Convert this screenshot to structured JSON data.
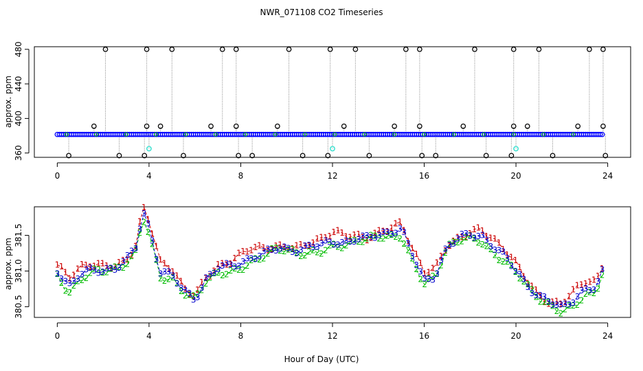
{
  "title": "NWR_071108  CO2 Timeseries",
  "shared_xlabel": "Hour of Day (UTC)",
  "chart_data": [
    {
      "type": "scatter",
      "panel": "top",
      "title": "",
      "xlabel": "",
      "ylabel": "approx. ppm",
      "xlim": [
        -1,
        25
      ],
      "ylim": [
        355,
        483
      ],
      "xticks": [
        "0",
        "4",
        "8",
        "12",
        "16",
        "20",
        "24"
      ],
      "yticks": [
        "360",
        "400",
        "440",
        "480"
      ],
      "baseline": 381.5,
      "colors": {
        "main": "#0000ff",
        "spikes": "#000000",
        "drop_lines": "#808080",
        "cyan": "#40e0d0",
        "green": "#00bb00",
        "red": "#cc0000"
      },
      "cyan_points": [
        [
          4.0,
          365
        ],
        [
          12.0,
          365
        ],
        [
          20.0,
          365
        ]
      ],
      "spikes_high": [
        2.1,
        3.9,
        5.0,
        7.2,
        7.8,
        10.1,
        11.9,
        13.0,
        15.2,
        15.8,
        18.2,
        19.9,
        21.0,
        23.2,
        23.8
      ],
      "spikes_low": [
        0.5,
        2.7,
        3.8,
        5.5,
        7.9,
        8.5,
        10.7,
        11.8,
        13.6,
        15.9,
        16.5,
        18.7,
        19.8,
        21.6,
        23.9
      ],
      "spikes_mid": [
        1.6,
        3.9,
        4.5,
        6.7,
        7.8,
        9.6,
        12.5,
        14.7,
        15.8,
        17.7,
        19.9,
        20.5,
        22.7,
        23.8
      ]
    },
    {
      "type": "line",
      "panel": "bottom",
      "title": "",
      "xlabel": "Hour of Day (UTC)",
      "ylabel": "approx. ppm",
      "xlim": [
        -1,
        25
      ],
      "ylim": [
        380.35,
        381.9
      ],
      "xticks": [
        "0",
        "4",
        "8",
        "12",
        "16",
        "20",
        "24"
      ],
      "yticks": [
        "380.5",
        "381.0",
        "381.5"
      ],
      "series": [
        {
          "name": "1",
          "color": "#cc0000",
          "dy": 0.12
        },
        {
          "name": "2",
          "color": "#00bb00",
          "dy": -0.09
        },
        {
          "name": "3",
          "color": "#0000cc",
          "dy": 0.0
        }
      ],
      "x": [
        0,
        0.5,
        1.0,
        1.5,
        2.0,
        2.5,
        3.0,
        3.5,
        3.7,
        4.0,
        4.5,
        5.0,
        5.5,
        6.0,
        6.5,
        7.0,
        7.5,
        8.0,
        8.5,
        9.0,
        9.5,
        10.0,
        10.5,
        11.0,
        11.5,
        12.0,
        12.5,
        13.0,
        13.5,
        14.0,
        14.5,
        15.0,
        15.5,
        16.0,
        16.5,
        17.0,
        17.5,
        18.0,
        18.5,
        19.0,
        19.5,
        20.0,
        20.5,
        21.0,
        21.5,
        22.0,
        22.5,
        23.0,
        23.5,
        23.8
      ],
      "y": [
        381.0,
        380.8,
        380.95,
        381.0,
        381.0,
        381.05,
        381.15,
        381.35,
        381.85,
        381.6,
        381.0,
        380.95,
        380.7,
        380.6,
        380.9,
        381.05,
        381.05,
        381.1,
        381.2,
        381.25,
        381.3,
        381.3,
        381.3,
        381.35,
        381.35,
        381.4,
        381.4,
        381.45,
        381.45,
        381.5,
        381.55,
        381.6,
        381.2,
        380.85,
        380.95,
        381.35,
        381.45,
        381.5,
        381.5,
        381.35,
        381.2,
        381.0,
        380.8,
        380.65,
        380.55,
        380.48,
        380.6,
        380.75,
        380.75,
        381.0
      ]
    }
  ]
}
